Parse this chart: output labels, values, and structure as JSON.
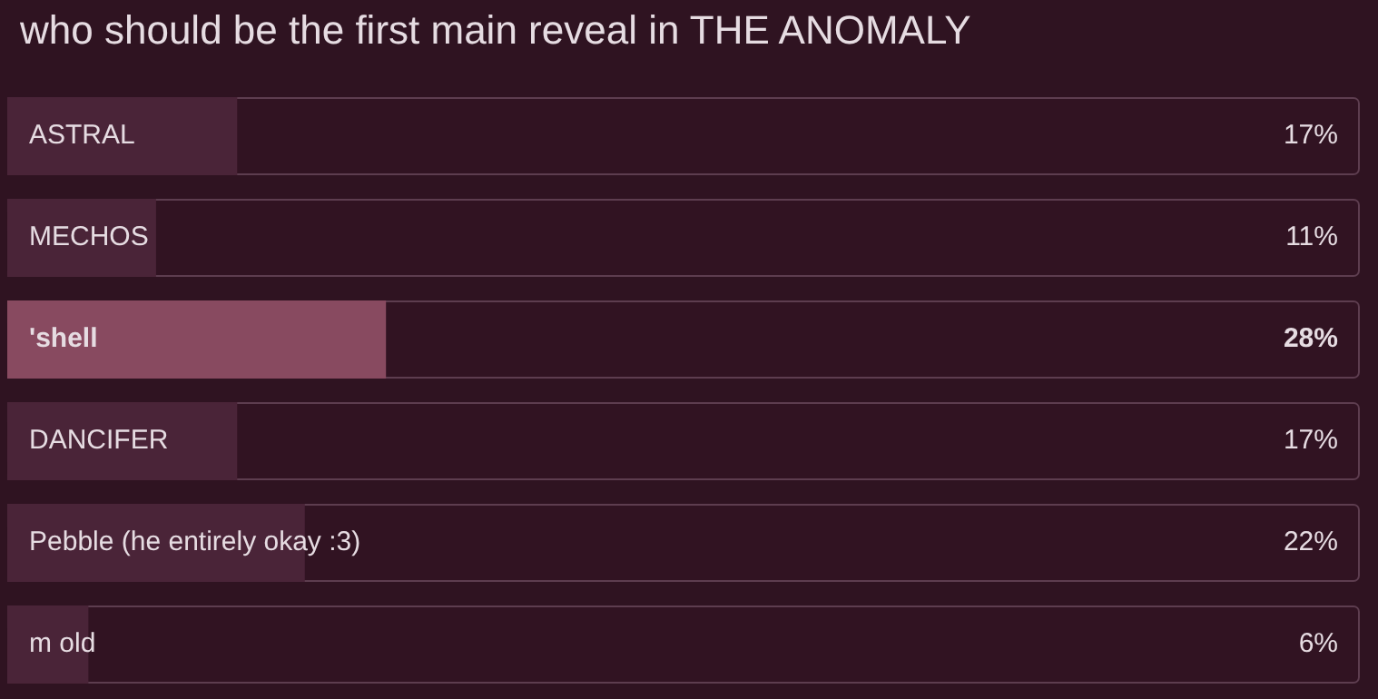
{
  "chart_data": {
    "type": "bar",
    "orientation": "horizontal",
    "title": "who should be the first main reveal in THE ANOMALY",
    "categories": [
      "ASTRAL",
      "MECHOS",
      "'shell",
      "DANCIFER",
      "Pebble (he entirely okay :3)",
      "m old"
    ],
    "values": [
      17,
      11,
      28,
      17,
      22,
      6
    ],
    "value_labels": [
      "17%",
      "11%",
      "28%",
      "17%",
      "22%",
      "6%"
    ],
    "colors": [
      "#4a2438",
      "#4a2438",
      "#884a60",
      "#4a2438",
      "#4a2438",
      "#4a2438"
    ],
    "xlim": [
      0,
      100
    ],
    "legend": false
  }
}
